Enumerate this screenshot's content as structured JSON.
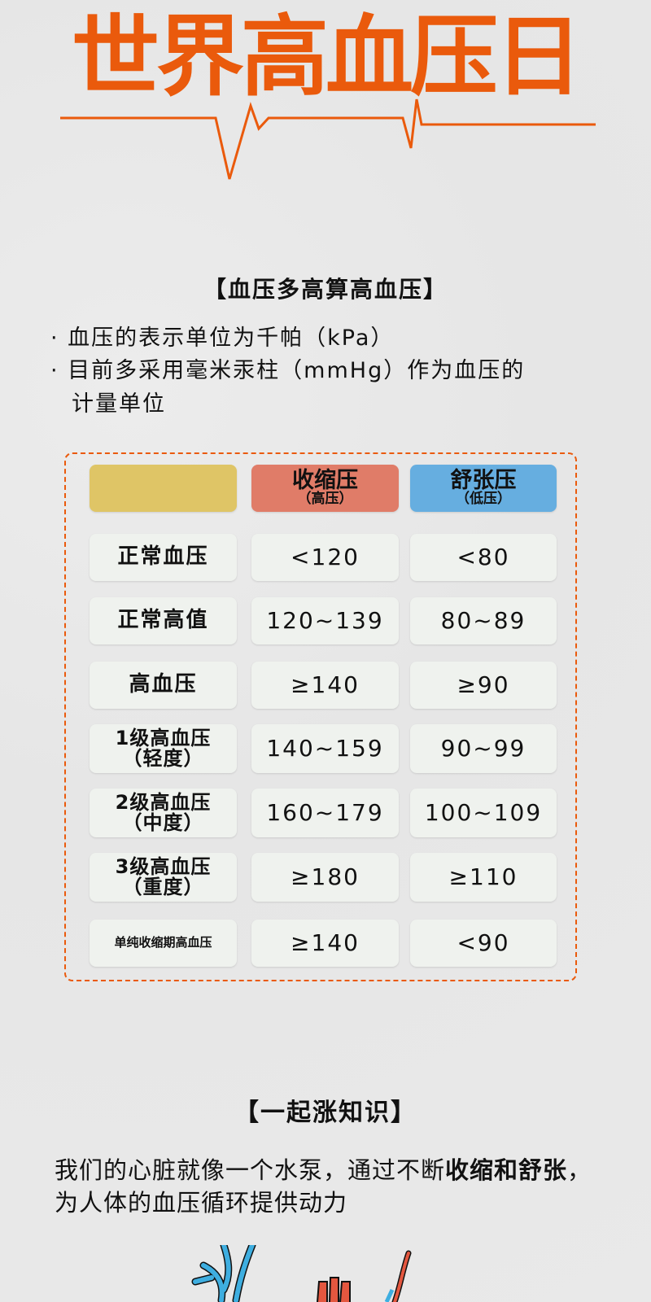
{
  "logo": {
    "text": "世界高血压日",
    "color": "#ea5a0c"
  },
  "section1": {
    "heading": "【血压多高算高血压】",
    "bullets": [
      "· 血压的表示单位为千帕（kPa）",
      "· 目前多采用毫米汞柱（mmHg）作为血压的",
      "计量单位"
    ]
  },
  "table": {
    "border_color": "#ea5a0c",
    "header": {
      "blank_color": "#dfc566",
      "systolic": {
        "label": "收缩压",
        "sub": "（高压）",
        "color": "#e07c68"
      },
      "diastolic": {
        "label": "舒张压",
        "sub": "（低压）",
        "color": "#66aee0"
      }
    },
    "rows": [
      {
        "label": "正常血压",
        "sub": "",
        "systolic": "<120",
        "diastolic": "<80"
      },
      {
        "label": "正常高值",
        "sub": "",
        "systolic": "120~139",
        "diastolic": "80~89"
      },
      {
        "label": "高血压",
        "sub": "",
        "systolic": "≥140",
        "diastolic": "≥90"
      },
      {
        "label": "1级高血压",
        "sub": "（轻度）",
        "systolic": "140~159",
        "diastolic": "90~99"
      },
      {
        "label": "2级高血压",
        "sub": "（中度）",
        "systolic": "160~179",
        "diastolic": "100~109"
      },
      {
        "label": "3级高血压",
        "sub": "（重度）",
        "systolic": "≥180",
        "diastolic": "≥110"
      },
      {
        "label": "单纯收缩期高血压",
        "sub": "",
        "systolic": "≥140",
        "diastolic": "<90"
      }
    ]
  },
  "section2": {
    "heading": "【一起涨知识】",
    "para": {
      "p1": "我们的心脏就像一个水泵，通过不断",
      "b1": "收缩和",
      "b2": "舒张",
      "p2": "，为人体的血压循环提供动力"
    }
  },
  "illustration": {
    "icon": "heart-anatomy-icon",
    "vein_color": "#3eaee0",
    "artery_color": "#e4573f"
  }
}
